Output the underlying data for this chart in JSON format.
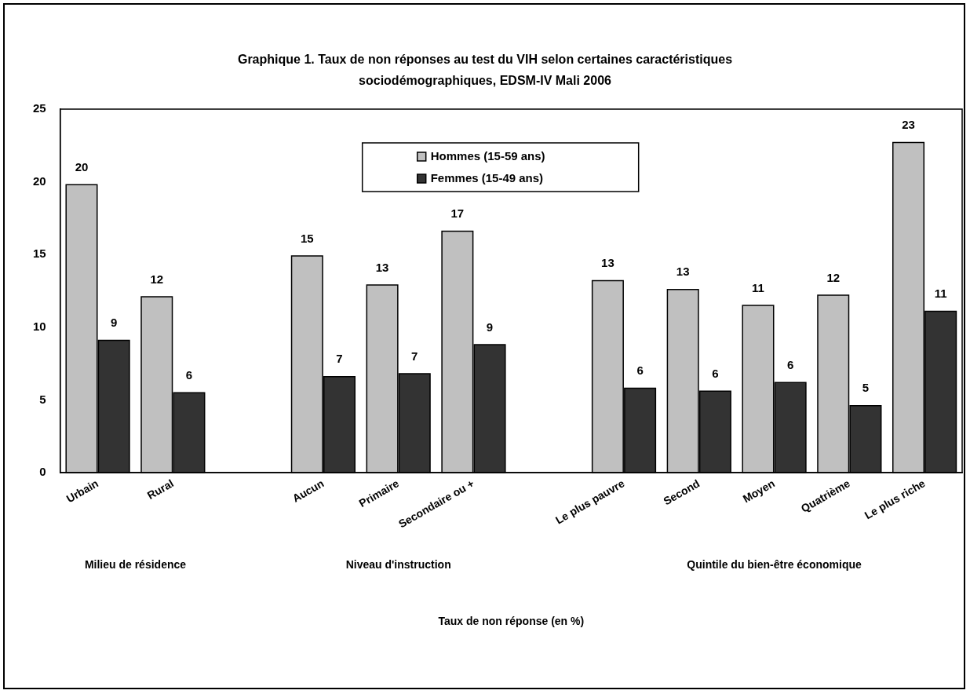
{
  "chart_data": {
    "type": "bar",
    "title": "Graphique 1. Taux de non réponses au test du VIH selon certaines caractéristiques sociodémographiques, EDSM-IV Mali 2006",
    "categories": [
      "Urbain",
      "Rural",
      null,
      "Aucun",
      "Primaire",
      "Secondaire ou +",
      null,
      "Le plus pauvre",
      "Second",
      "Moyen",
      "Quatrième",
      "Le plus riche"
    ],
    "series": [
      {
        "name": "Hommes (15-59 ans)",
        "color": "#c0c0c0",
        "values": [
          19.8,
          12.1,
          null,
          14.9,
          12.9,
          16.6,
          null,
          13.2,
          12.6,
          11.5,
          12.2,
          22.7
        ],
        "value_labels": [
          "20",
          "12",
          null,
          "15",
          "13",
          "17",
          null,
          "13",
          "13",
          "11",
          "12",
          "23"
        ]
      },
      {
        "name": "Femmes (15-49 ans)",
        "color": "#333333",
        "values": [
          9.1,
          5.5,
          null,
          6.6,
          6.8,
          8.8,
          null,
          5.8,
          5.6,
          6.2,
          4.6,
          11.1
        ],
        "value_labels": [
          "9",
          "6",
          null,
          "7",
          "7",
          "9",
          null,
          "6",
          "6",
          "6",
          "5",
          "11"
        ]
      }
    ],
    "annotations": [
      "Milieu de résidence",
      "Niveau d'instruction",
      "Quintile du bien-être économique",
      "Taux de non réponse (en %)"
    ],
    "ylim": [
      0,
      25
    ],
    "yticks": [
      0,
      5,
      10,
      15,
      20,
      25
    ],
    "grid": false,
    "legend": "top"
  }
}
